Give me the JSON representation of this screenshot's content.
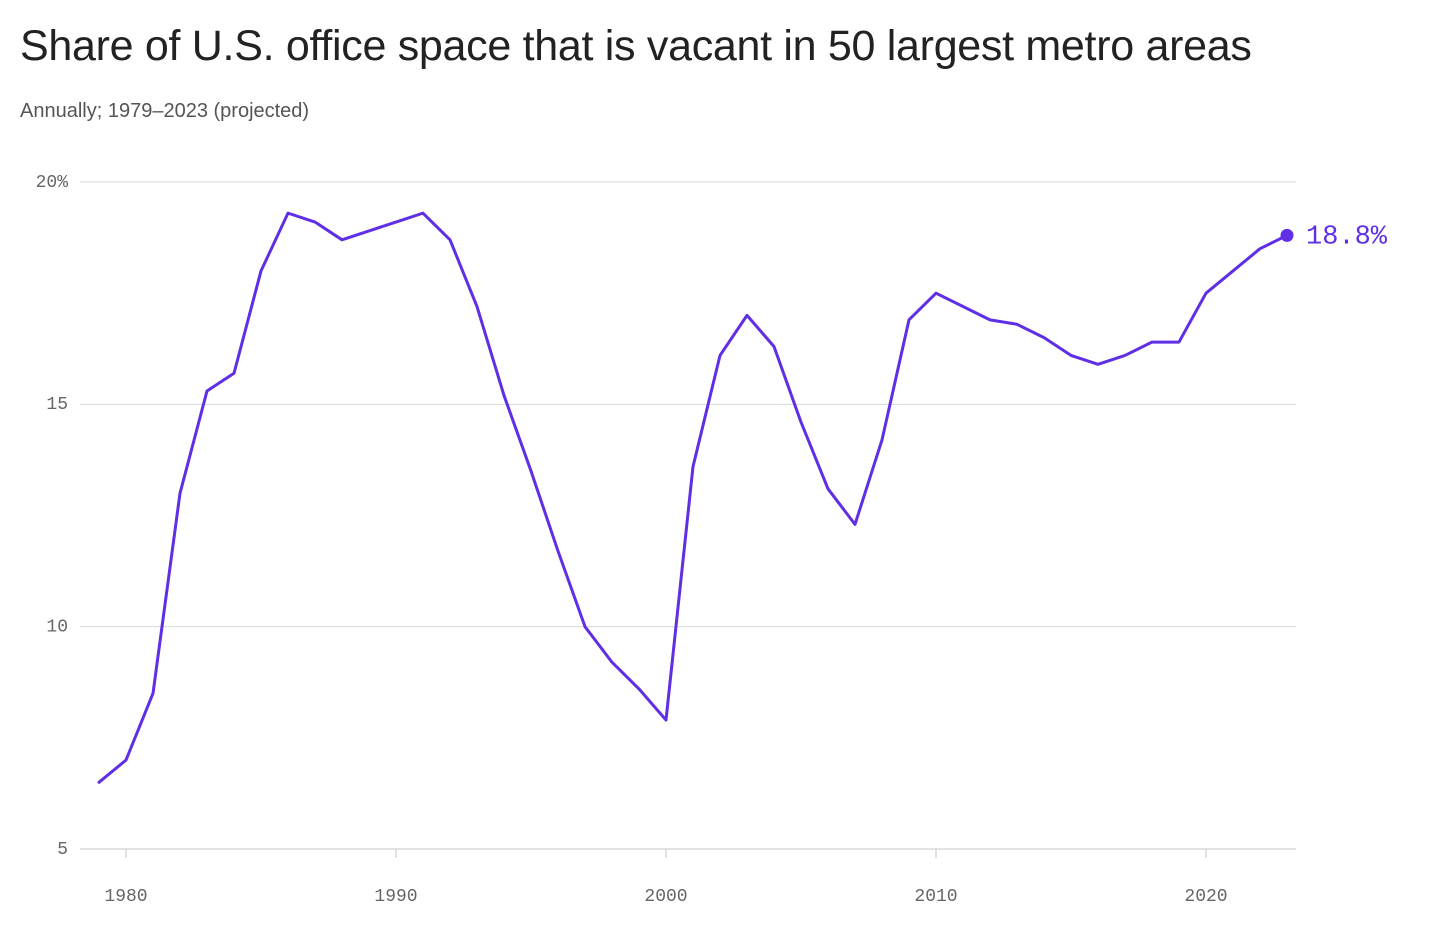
{
  "header": {
    "title": "Share of U.S. office space that is vacant in 50 largest metro areas",
    "subtitle": "Annually; 1979–2023 (projected)"
  },
  "colors": {
    "line": "#5f2ee5",
    "text_primary": "#222222",
    "text_secondary": "#555555",
    "grid": "#d9d9d9"
  },
  "chart_data": {
    "type": "line",
    "title": "Share of U.S. office space that is vacant in 50 largest metro areas",
    "subtitle": "Annually; 1979–2023 (projected)",
    "xlabel": "",
    "ylabel": "",
    "xlim": [
      1979,
      2023
    ],
    "ylim": [
      5,
      20
    ],
    "x_ticks": [
      1980,
      1990,
      2000,
      2010,
      2020
    ],
    "x_tick_labels": [
      "1980",
      "1990",
      "2000",
      "2010",
      "2020"
    ],
    "y_ticks": [
      5,
      10,
      15,
      20
    ],
    "y_tick_labels": [
      "5",
      "10",
      "15",
      "20%"
    ],
    "grid": "horizontal",
    "legend": "none",
    "x": [
      1979,
      1980,
      1981,
      1982,
      1983,
      1984,
      1985,
      1986,
      1987,
      1988,
      1989,
      1990,
      1991,
      1992,
      1993,
      1994,
      1995,
      1996,
      1997,
      1998,
      1999,
      2000,
      2001,
      2002,
      2003,
      2004,
      2005,
      2006,
      2007,
      2008,
      2009,
      2010,
      2011,
      2012,
      2013,
      2014,
      2015,
      2016,
      2017,
      2018,
      2019,
      2020,
      2021,
      2022,
      2023
    ],
    "series": [
      {
        "values": [
          6.5,
          7.0,
          8.5,
          13.0,
          15.3,
          15.7,
          18.0,
          19.3,
          19.1,
          18.7,
          18.9,
          19.1,
          19.3,
          18.7,
          17.2,
          15.2,
          13.5,
          11.7,
          10.0,
          9.2,
          8.6,
          7.9,
          13.6,
          16.1,
          17.0,
          16.3,
          14.6,
          13.1,
          12.3,
          14.2,
          16.9,
          17.5,
          17.2,
          16.9,
          16.8,
          16.5,
          16.1,
          15.9,
          16.1,
          16.4,
          16.4,
          17.5,
          18.0,
          18.5,
          18.8
        ],
        "color": "#5f2ee5"
      }
    ],
    "annotations": [
      {
        "x": 2023,
        "y": 18.8,
        "text": "18.8%"
      }
    ]
  }
}
